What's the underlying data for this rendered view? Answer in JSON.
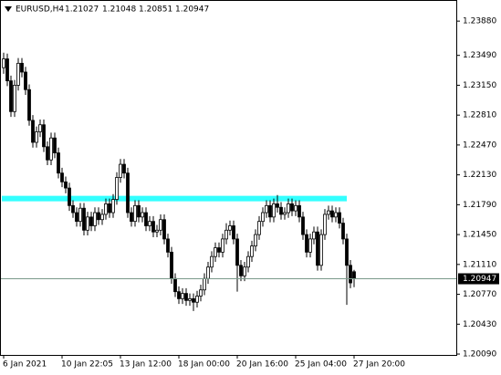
{
  "chart_data": {
    "type": "candlestick",
    "title": "EURUSD,H4",
    "categories": [
      "6 Jan 2021",
      null,
      null,
      null,
      null,
      null,
      null,
      null,
      null,
      null,
      null,
      null,
      null,
      null,
      null,
      null,
      "10 Jan 22:05",
      null,
      null,
      null,
      null,
      null,
      null,
      null,
      null,
      null,
      null,
      null,
      null,
      null,
      null,
      null,
      "13 Jan 12:00",
      null,
      null,
      null,
      null,
      null,
      null,
      null,
      null,
      null,
      null,
      null,
      null,
      null,
      null,
      null,
      "18 Jan 00:00",
      null,
      null,
      null,
      null,
      null,
      null,
      null,
      null,
      null,
      null,
      null,
      null,
      null,
      null,
      null,
      "20 Jan 16:00",
      null,
      null,
      null,
      null,
      null,
      null,
      null,
      null,
      null,
      null,
      null,
      null,
      null,
      null,
      null,
      "25 Jan 04:00",
      null,
      null,
      null,
      null,
      null,
      null,
      null,
      null,
      null,
      null,
      null,
      null,
      null,
      null,
      null,
      "27 Jan 20:00"
    ],
    "open": [
      1.2335,
      1.2345,
      1.232,
      1.2285,
      1.2315,
      1.234,
      1.233,
      1.231,
      1.2275,
      1.225,
      1.2262,
      1.227,
      1.2245,
      1.223,
      1.2255,
      1.2238,
      1.2215,
      1.2205,
      1.2198,
      1.2178,
      1.217,
      1.216,
      1.2175,
      1.215,
      1.2165,
      1.2155,
      1.217,
      1.2162,
      1.2168,
      1.218,
      1.217,
      1.2185,
      1.221,
      1.2225,
      1.2215,
      1.217,
      1.216,
      1.2178,
      1.2165,
      1.217,
      1.2155,
      1.216,
      1.2148,
      1.215,
      1.2162,
      1.214,
      1.2125,
      1.2095,
      1.208,
      1.2072,
      1.2078,
      1.207,
      1.2072,
      1.2068,
      1.2075,
      1.2082,
      1.2095,
      1.2108,
      1.212,
      1.213,
      1.2125,
      1.214,
      1.215,
      1.2155,
      1.214,
      1.211,
      1.2098,
      1.2108,
      1.212,
      1.2132,
      1.2145,
      1.216,
      1.217,
      1.2178,
      1.2165,
      1.218,
      1.2176,
      1.2168,
      1.217,
      1.218,
      1.2172,
      1.2178,
      1.2165,
      1.2145,
      1.2125,
      1.214,
      1.2148,
      1.211,
      1.2145,
      1.2168,
      1.2172,
      1.2165,
      1.217,
      1.2158,
      1.214,
      1.211,
      1.21027
    ],
    "high": [
      1.2352,
      1.2351,
      1.2326,
      1.2321,
      1.2346,
      1.2346,
      1.2336,
      1.2316,
      1.2281,
      1.2268,
      1.2276,
      1.2276,
      1.2251,
      1.2261,
      1.2261,
      1.2244,
      1.2221,
      1.2211,
      1.2204,
      1.2184,
      1.2176,
      1.2181,
      1.2181,
      1.2171,
      1.2171,
      1.2176,
      1.2176,
      1.2174,
      1.2186,
      1.2186,
      1.2191,
      1.2216,
      1.2231,
      1.2231,
      1.2221,
      1.2176,
      1.2184,
      1.2184,
      1.2176,
      1.2176,
      1.2166,
      1.2166,
      1.2156,
      1.2168,
      1.2168,
      1.2146,
      1.2131,
      1.2101,
      1.2086,
      1.2084,
      1.2084,
      1.2078,
      1.2078,
      1.2081,
      1.2088,
      1.2101,
      1.2114,
      1.2126,
      1.2136,
      1.2136,
      1.2146,
      1.2158,
      1.2161,
      1.2161,
      1.2146,
      1.2116,
      1.2114,
      1.2126,
      1.2138,
      1.2151,
      1.2166,
      1.2176,
      1.2184,
      1.2184,
      1.2186,
      1.219,
      1.2182,
      1.2176,
      1.2186,
      1.2186,
      1.2184,
      1.2184,
      1.2171,
      1.2151,
      1.2146,
      1.2154,
      1.2154,
      1.2151,
      1.2174,
      1.2178,
      1.2178,
      1.2176,
      1.2176,
      1.2164,
      1.2146,
      1.2116,
      1.21048
    ],
    "low": [
      1.2328,
      1.2314,
      1.2279,
      1.2279,
      1.2309,
      1.2324,
      1.2304,
      1.2269,
      1.2244,
      1.2244,
      1.2256,
      1.2239,
      1.2224,
      1.2224,
      1.2232,
      1.2209,
      1.2199,
      1.2192,
      1.2172,
      1.2164,
      1.2154,
      1.2154,
      1.2144,
      1.2144,
      1.2149,
      1.2149,
      1.2156,
      1.2156,
      1.2162,
      1.2164,
      1.2164,
      1.2179,
      1.2204,
      1.2209,
      1.2164,
      1.2154,
      1.2154,
      1.2159,
      1.2159,
      1.2149,
      1.2149,
      1.2142,
      1.2142,
      1.2144,
      1.2134,
      1.2119,
      1.2089,
      1.2074,
      1.2066,
      1.2066,
      1.2064,
      1.2064,
      1.2058,
      1.2062,
      1.2069,
      1.2076,
      1.2089,
      1.2102,
      1.2114,
      1.2119,
      1.2119,
      1.2134,
      1.2144,
      1.2134,
      1.208,
      1.2092,
      1.2092,
      1.2102,
      1.2114,
      1.2126,
      1.2139,
      1.2154,
      1.2164,
      1.2159,
      1.2159,
      1.217,
      1.2162,
      1.2162,
      1.2164,
      1.2166,
      1.2166,
      1.2159,
      1.2139,
      1.2119,
      1.2119,
      1.2134,
      1.2104,
      1.2104,
      1.2139,
      1.2162,
      1.2159,
      1.2159,
      1.2152,
      1.2134,
      1.2065,
      1.2084,
      1.20851
    ],
    "close": [
      1.2345,
      1.232,
      1.2285,
      1.2315,
      1.234,
      1.233,
      1.231,
      1.2275,
      1.225,
      1.2262,
      1.227,
      1.2245,
      1.223,
      1.2255,
      1.2238,
      1.2215,
      1.2205,
      1.2198,
      1.2178,
      1.217,
      1.216,
      1.2175,
      1.215,
      1.2165,
      1.2155,
      1.217,
      1.2162,
      1.2168,
      1.218,
      1.217,
      1.2185,
      1.221,
      1.2225,
      1.2215,
      1.217,
      1.216,
      1.2178,
      1.2165,
      1.217,
      1.2155,
      1.216,
      1.2148,
      1.215,
      1.2162,
      1.214,
      1.2125,
      1.2095,
      1.208,
      1.2072,
      1.2078,
      1.207,
      1.2072,
      1.2068,
      1.2075,
      1.2082,
      1.2095,
      1.2108,
      1.212,
      1.213,
      1.2125,
      1.214,
      1.215,
      1.2155,
      1.214,
      1.211,
      1.2098,
      1.2108,
      1.212,
      1.2132,
      1.2145,
      1.216,
      1.217,
      1.2178,
      1.2165,
      1.218,
      1.2176,
      1.2168,
      1.217,
      1.218,
      1.2172,
      1.2178,
      1.2165,
      1.2145,
      1.2125,
      1.214,
      1.2148,
      1.211,
      1.2145,
      1.2168,
      1.2172,
      1.2165,
      1.217,
      1.2158,
      1.214,
      1.211,
      1.209,
      1.20947
    ],
    "up_color": "#ffffff",
    "down_color": "#000000",
    "ylim": [
      1.2008,
      1.2411
    ],
    "yticks": [
      {
        "value": 1.2388,
        "label": "1.23880"
      },
      {
        "value": 1.2349,
        "label": "1.23490"
      },
      {
        "value": 1.2315,
        "label": "1.23150"
      },
      {
        "value": 1.2281,
        "label": "1.22810"
      },
      {
        "value": 1.2247,
        "label": "1.22470"
      },
      {
        "value": 1.2213,
        "label": "1.22130"
      },
      {
        "value": 1.2179,
        "label": "1.21790"
      },
      {
        "value": 1.2145,
        "label": "1.21450"
      },
      {
        "value": 1.2111,
        "label": "1.21110"
      },
      {
        "value": 1.2077,
        "label": "1.20770"
      },
      {
        "value": 1.2043,
        "label": "1.20430"
      },
      {
        "value": 1.2009,
        "label": "1.20090"
      }
    ],
    "level_line": {
      "value": 1.2186,
      "color": "#33ffff"
    },
    "grid": false
  }
}
